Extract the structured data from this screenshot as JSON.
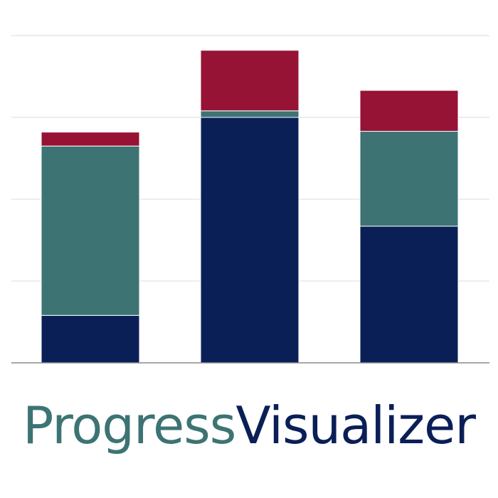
{
  "logo": {
    "wordmark_part_1": "Progress",
    "wordmark_part_2": "Visualizer",
    "colors": {
      "wordmark_part_1": "#3d7373",
      "wordmark_part_2": "#0b1f57",
      "gridline": "#e2e2e2",
      "baseline": "#8a8a8a"
    }
  },
  "chart_data": {
    "type": "bar",
    "stacked": true,
    "ylim": [
      0,
      4
    ],
    "grid": true,
    "categories": [
      "",
      "",
      ""
    ],
    "series": [
      {
        "color": "#0b1f57",
        "values": [
          0.58,
          3.0,
          1.67
        ]
      },
      {
        "color": "#3d7373",
        "values": [
          2.07,
          0.08,
          1.16
        ]
      },
      {
        "color": "#961335",
        "values": [
          0.17,
          0.74,
          0.5
        ]
      }
    ]
  }
}
